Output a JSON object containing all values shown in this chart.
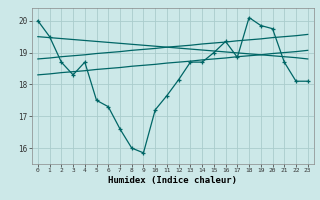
{
  "xlabel": "Humidex (Indice chaleur)",
  "background_color": "#cce8e8",
  "grid_color": "#aacccc",
  "line_color": "#006666",
  "x": [
    0,
    1,
    2,
    3,
    4,
    5,
    6,
    7,
    8,
    9,
    10,
    11,
    12,
    13,
    14,
    15,
    16,
    17,
    18,
    19,
    20,
    21,
    22,
    23
  ],
  "line1": [
    20.0,
    19.5,
    18.7,
    18.3,
    18.7,
    17.5,
    17.3,
    16.6,
    16.0,
    15.85,
    17.2,
    17.65,
    18.15,
    18.7,
    18.7,
    19.0,
    19.35,
    18.85,
    20.1,
    19.85,
    19.75,
    18.7,
    18.1,
    18.1
  ],
  "line2": [
    19.5,
    19.47,
    19.44,
    19.41,
    19.38,
    19.35,
    19.32,
    19.29,
    19.26,
    19.23,
    19.2,
    19.17,
    19.14,
    19.11,
    19.08,
    19.05,
    19.02,
    18.99,
    18.96,
    18.93,
    18.9,
    18.87,
    18.84,
    18.8
  ],
  "line3": [
    18.8,
    18.83,
    18.87,
    18.9,
    18.93,
    18.97,
    19.0,
    19.03,
    19.07,
    19.1,
    19.13,
    19.17,
    19.2,
    19.23,
    19.27,
    19.3,
    19.33,
    19.37,
    19.4,
    19.43,
    19.47,
    19.5,
    19.53,
    19.57
  ],
  "line4": [
    18.3,
    18.33,
    18.37,
    18.4,
    18.43,
    18.47,
    18.5,
    18.53,
    18.57,
    18.6,
    18.63,
    18.67,
    18.7,
    18.73,
    18.77,
    18.8,
    18.83,
    18.87,
    18.9,
    18.93,
    18.97,
    19.0,
    19.03,
    19.07
  ],
  "yticks": [
    16,
    17,
    18,
    19,
    20
  ],
  "ylim": [
    15.5,
    20.4
  ],
  "xlim": [
    -0.5,
    23.5
  ]
}
